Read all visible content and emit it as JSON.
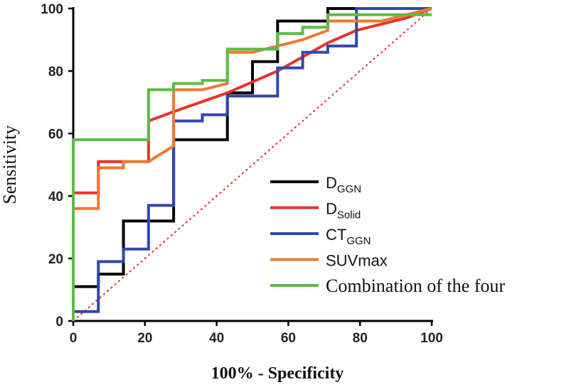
{
  "chart_data": {
    "type": "line",
    "title": "",
    "xlabel": "100% - Specificity",
    "ylabel": "Sensitivity",
    "xlim": [
      0,
      100
    ],
    "ylim": [
      0,
      100
    ],
    "x_ticks": [
      "0",
      "20",
      "40",
      "60",
      "80",
      "100"
    ],
    "y_ticks": [
      "0",
      "20",
      "40",
      "60",
      "80",
      "100"
    ],
    "legend_position": "bottom-right",
    "reference_line": {
      "name": "reference",
      "color": "#e03030",
      "style": "dotted",
      "points": [
        [
          0,
          0
        ],
        [
          100,
          100
        ]
      ]
    },
    "series": [
      {
        "name": "D_GGN",
        "main": "D",
        "sub": "GGN",
        "font": "sans",
        "color": "#000000",
        "points": [
          [
            0,
            0
          ],
          [
            0,
            11
          ],
          [
            7,
            11
          ],
          [
            7,
            15
          ],
          [
            14,
            15
          ],
          [
            14,
            32
          ],
          [
            28,
            32
          ],
          [
            28,
            58
          ],
          [
            43,
            58
          ],
          [
            43,
            73
          ],
          [
            50,
            73
          ],
          [
            50,
            75
          ],
          [
            50,
            83
          ],
          [
            57,
            83
          ],
          [
            57,
            96
          ],
          [
            71,
            96
          ],
          [
            71,
            100
          ],
          [
            79,
            100
          ],
          [
            100,
            100
          ]
        ]
      },
      {
        "name": "D_Solid",
        "main": "D",
        "sub": "Solid",
        "font": "sans",
        "color": "#e8342a",
        "points": [
          [
            0,
            0
          ],
          [
            0,
            41
          ],
          [
            7,
            41
          ],
          [
            7,
            51
          ],
          [
            21,
            51
          ],
          [
            21,
            55
          ],
          [
            21,
            64
          ],
          [
            28,
            67
          ],
          [
            43,
            73
          ],
          [
            57,
            80
          ],
          [
            71,
            89
          ],
          [
            79,
            93
          ],
          [
            93,
            97
          ],
          [
            100,
            100
          ]
        ]
      },
      {
        "name": "CT_GGN",
        "main": "CT",
        "sub": "GGN",
        "font": "sans",
        "color": "#3347a8",
        "points": [
          [
            0,
            0
          ],
          [
            0,
            3
          ],
          [
            7,
            3
          ],
          [
            7,
            19
          ],
          [
            14,
            19
          ],
          [
            14,
            23
          ],
          [
            21,
            23
          ],
          [
            21,
            37
          ],
          [
            28,
            37
          ],
          [
            28,
            64
          ],
          [
            36,
            64
          ],
          [
            36,
            66
          ],
          [
            43,
            66
          ],
          [
            43,
            72
          ],
          [
            57,
            72
          ],
          [
            57,
            81
          ],
          [
            64,
            81
          ],
          [
            64,
            86
          ],
          [
            71,
            86
          ],
          [
            71,
            88
          ],
          [
            79,
            88
          ],
          [
            79,
            100
          ],
          [
            100,
            100
          ]
        ]
      },
      {
        "name": "SUVmax",
        "main": "SUVmax",
        "sub": "",
        "font": "sans",
        "color": "#ed7a2e",
        "points": [
          [
            0,
            0
          ],
          [
            0,
            36
          ],
          [
            7,
            36
          ],
          [
            7,
            49
          ],
          [
            14,
            49
          ],
          [
            14,
            51
          ],
          [
            21,
            51
          ],
          [
            28,
            56
          ],
          [
            28,
            74
          ],
          [
            36,
            74
          ],
          [
            43,
            76
          ],
          [
            43,
            86
          ],
          [
            50,
            86
          ],
          [
            57,
            88
          ],
          [
            64,
            90
          ],
          [
            71,
            93
          ],
          [
            71,
            96
          ],
          [
            86,
            96
          ],
          [
            100,
            100
          ]
        ]
      },
      {
        "name": "Combination of the four",
        "main": "Combination of the four",
        "sub": "",
        "font": "serif",
        "color": "#5dbb46",
        "points": [
          [
            0,
            0
          ],
          [
            0,
            58
          ],
          [
            21,
            58
          ],
          [
            21,
            74
          ],
          [
            28,
            74
          ],
          [
            28,
            76
          ],
          [
            36,
            76
          ],
          [
            36,
            77
          ],
          [
            43,
            77
          ],
          [
            43,
            87
          ],
          [
            57,
            87
          ],
          [
            57,
            92
          ],
          [
            64,
            92
          ],
          [
            64,
            94
          ],
          [
            71,
            94
          ],
          [
            71,
            98
          ],
          [
            100,
            98
          ]
        ]
      }
    ]
  }
}
